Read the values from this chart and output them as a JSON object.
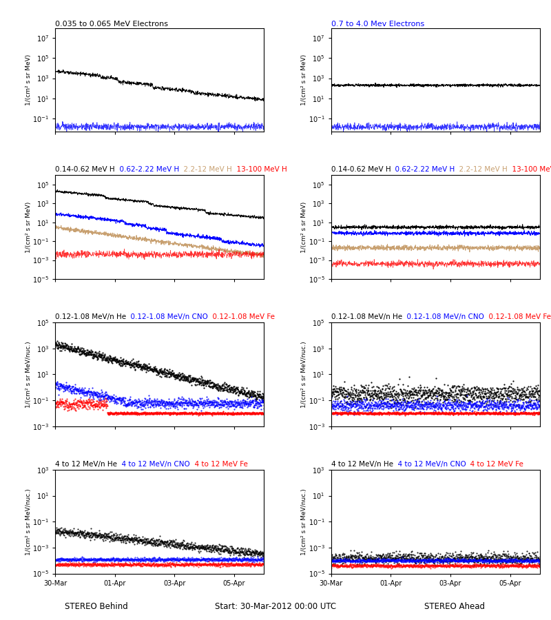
{
  "title_row1_left": "0.035 to 0.065 MeV Electrons",
  "title_row1_right": "0.7 to 4.0 Mev Electrons",
  "title_row2_left_parts": [
    "0.14-0.62 MeV H",
    "0.62-2.22 MeV H",
    "2.2-12 MeV H",
    "13-100 MeV H"
  ],
  "title_row2_left_colors": [
    "black",
    "blue",
    "#c8a070",
    "red"
  ],
  "title_row3_left_parts": [
    "0.12-1.08 MeV/n He",
    "0.12-1.08 MeV/n CNO",
    "0.12-1.08 MeV Fe"
  ],
  "title_row3_left_colors": [
    "black",
    "blue",
    "red"
  ],
  "title_row4_left_parts": [
    "4 to 12 MeV/n He",
    "4 to 12 MeV/n CNO",
    "4 to 12 MeV Fe"
  ],
  "title_row4_left_colors": [
    "black",
    "blue",
    "red"
  ],
  "xlabel_left": "STEREO Behind",
  "xlabel_right": "STEREO Ahead",
  "xlabel_center": "Start: 30-Mar-2012 00:00 UTC",
  "ylabel_e": "1/(cm² s sr MeV)",
  "ylabel_H": "1/(cm² s sr MeV)",
  "ylabel_lo": "1/(cm² s sr MeV/nuc.)",
  "ylabel_hi": "1/(cm² s sr MeV/nuc.)",
  "xtick_labels": [
    "30-Mar",
    "01-Apr",
    "03-Apr",
    "05-Apr"
  ],
  "seed": 42
}
